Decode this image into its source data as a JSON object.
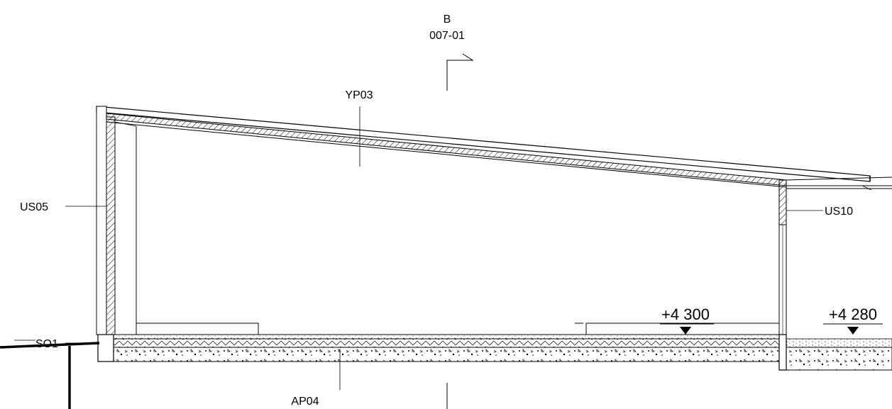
{
  "section_marker": {
    "letter": "B",
    "sheet": "007-01"
  },
  "labels": {
    "roof": "YP03",
    "left_wall": "US05",
    "right_wall": "US10",
    "foundation": "SO1",
    "floor": "AP04"
  },
  "levels": {
    "main": "+4 300",
    "adjacent": "+4 280"
  }
}
